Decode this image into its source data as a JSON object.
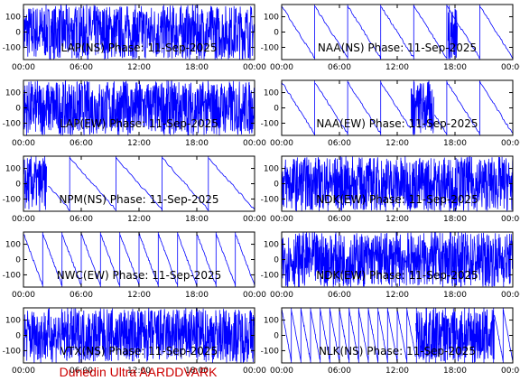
{
  "footer": "Dunedin Ultra AARDDVARK",
  "colors": {
    "trace": "#0000ff",
    "footer": "#cc0000",
    "axes": "#000000"
  },
  "chart_data": [
    {
      "type": "line",
      "title": "LAP(NS) Phase: 11-Sep-2025",
      "x_ticks": [
        "00:00",
        "06:00",
        "12:00",
        "18:00",
        "00:00"
      ],
      "y_ticks": [
        "100",
        "0",
        "-100"
      ],
      "ylim": [
        -180,
        180
      ],
      "pattern": "dense_right",
      "dense_span": [
        0.0,
        1.0
      ]
    },
    {
      "type": "line",
      "title": "NAA(NS) Phase: 11-Sep-2025",
      "x_ticks": [
        "00:00",
        "06:00",
        "12:00",
        "18:00",
        "00:00"
      ],
      "y_ticks": [
        "100",
        "0",
        "-100"
      ],
      "ylim": [
        -180,
        180
      ],
      "pattern": "slopes",
      "slope_sign": -1,
      "segments": 7,
      "dense_span": [
        0.72,
        0.76
      ]
    },
    {
      "type": "line",
      "title": "LAP(EW) Phase: 11-Sep-2025",
      "x_ticks": [
        "00:00",
        "06:00",
        "12:00",
        "18:00",
        "00:00"
      ],
      "y_ticks": [
        "100",
        "0",
        "-100"
      ],
      "ylim": [
        -180,
        180
      ],
      "pattern": "dense_right",
      "dense_span": [
        0.0,
        1.0
      ]
    },
    {
      "type": "line",
      "title": "NAA(EW) Phase: 11-Sep-2025",
      "x_ticks": [
        "00:00",
        "06:00",
        "12:00",
        "18:00",
        "00:00"
      ],
      "y_ticks": [
        "100",
        "0",
        "-100"
      ],
      "ylim": [
        -180,
        180
      ],
      "pattern": "slopes",
      "slope_sign": -1,
      "segments": 7,
      "dense_span": [
        0.56,
        0.66
      ]
    },
    {
      "type": "line",
      "title": "NPM(NS) Phase: 11-Sep-2025",
      "x_ticks": [
        "00:00",
        "06:00",
        "12:00",
        "18:00",
        "00:00"
      ],
      "y_ticks": [
        "100",
        "0",
        "-100"
      ],
      "ylim": [
        -180,
        180
      ],
      "pattern": "slopes",
      "slope_sign": -1,
      "segments": 5,
      "dense_span": [
        0.0,
        0.1
      ]
    },
    {
      "type": "line",
      "title": "NDK(EW) Phase: 11-Sep-2025",
      "x_ticks": [
        "00:00",
        "06:00",
        "12:00",
        "18:00",
        "00:00"
      ],
      "y_ticks": [
        "100",
        "0",
        "-100"
      ],
      "ylim": [
        -180,
        180
      ],
      "pattern": "dense",
      "dense_span": [
        0.0,
        1.0
      ]
    },
    {
      "type": "line",
      "title": "NWC(EW) Phase: 11-Sep-2025",
      "x_ticks": [
        "00:00",
        "06:00",
        "12:00",
        "18:00",
        "00:00"
      ],
      "y_ticks": [
        "100",
        "0",
        "-100"
      ],
      "ylim": [
        -180,
        180
      ],
      "pattern": "slopes",
      "slope_sign": -1,
      "segments": 12,
      "dense_span": [
        0.0,
        0.0
      ]
    },
    {
      "type": "line",
      "title": "NDK(EW) Phase: 11-Sep-2025",
      "x_ticks": [
        "00:00",
        "06:00",
        "12:00",
        "18:00",
        "00:00"
      ],
      "y_ticks": [
        "100",
        "0",
        "-100"
      ],
      "ylim": [
        -180,
        180
      ],
      "pattern": "dense",
      "dense_span": [
        0.0,
        1.0
      ]
    },
    {
      "type": "line",
      "title": "VTX(NS) Phase: 11-Sep-2025",
      "x_ticks": [
        "00:00",
        "06:00",
        "12:00",
        "18:00",
        "00:00"
      ],
      "y_ticks": [
        "100",
        "0",
        "-100"
      ],
      "ylim": [
        -180,
        180
      ],
      "pattern": "dense",
      "dense_span": [
        0.0,
        1.0
      ]
    },
    {
      "type": "line",
      "title": "NLK(NS) Phase: 11-Sep-2025",
      "x_ticks": [
        "00:00",
        "06:00",
        "12:00",
        "18:00",
        "00:00"
      ],
      "y_ticks": [
        "100",
        "0",
        "-100"
      ],
      "ylim": [
        -180,
        180
      ],
      "pattern": "slopes",
      "slope_sign": -1,
      "segments": 24,
      "dense_span": [
        0.58,
        0.92
      ]
    }
  ]
}
